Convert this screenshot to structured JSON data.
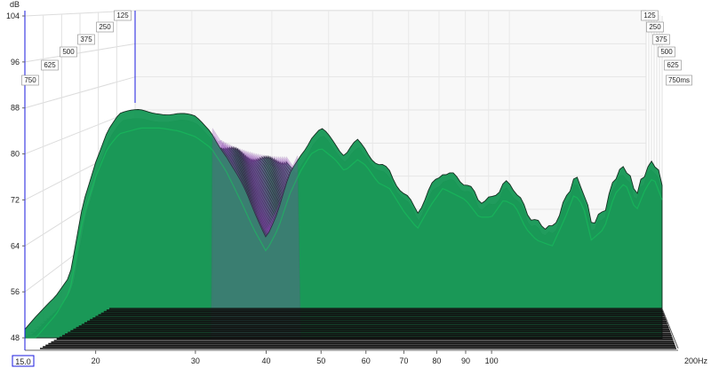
{
  "chart_data": {
    "type": "waterfall",
    "y_unit": "dB",
    "y_ticks": [
      "104",
      "96",
      "88",
      "80",
      "72",
      "64",
      "56",
      "48"
    ],
    "ylim": [
      46,
      104
    ],
    "x_ticks": [
      "20",
      "30",
      "40",
      "50",
      "60",
      "70",
      "80",
      "90",
      "100"
    ],
    "x_start_label": "15.0",
    "x_end_label": "200Hz",
    "xlim_hz": [
      15,
      200
    ],
    "x_scale": "log",
    "time_unit": "ms",
    "time_ticks_left": [
      "125",
      "250",
      "375",
      "500",
      "625",
      "750"
    ],
    "time_ticks_right": [
      "125",
      "250",
      "375",
      "500",
      "625",
      "750ms"
    ],
    "time_range_ms": [
      0,
      750
    ],
    "grid": true,
    "colors": {
      "front_fill": "#1a9a58",
      "slice_fill": "#2f8a62",
      "highlight": "#15c95c",
      "purple": "#8a3fb2",
      "floor_line": "#111111",
      "marker": "#1a1adf"
    },
    "front_slice_db": [
      {
        "hz": 15,
        "db": 49
      },
      {
        "hz": 16,
        "db": 52
      },
      {
        "hz": 17,
        "db": 55
      },
      {
        "hz": 18,
        "db": 59
      },
      {
        "hz": 19,
        "db": 72
      },
      {
        "hz": 20,
        "db": 79
      },
      {
        "hz": 21,
        "db": 84
      },
      {
        "hz": 22,
        "db": 86.5
      },
      {
        "hz": 24,
        "db": 87.5
      },
      {
        "hz": 26,
        "db": 87.5
      },
      {
        "hz": 28,
        "db": 87
      },
      {
        "hz": 30,
        "db": 86
      },
      {
        "hz": 32,
        "db": 84
      },
      {
        "hz": 34,
        "db": 80
      },
      {
        "hz": 36,
        "db": 75
      },
      {
        "hz": 38,
        "db": 70
      },
      {
        "hz": 40,
        "db": 66
      },
      {
        "hz": 42,
        "db": 70
      },
      {
        "hz": 44,
        "db": 76
      },
      {
        "hz": 46,
        "db": 80
      },
      {
        "hz": 48,
        "db": 83
      },
      {
        "hz": 50,
        "db": 84
      },
      {
        "hz": 53,
        "db": 82
      },
      {
        "hz": 55,
        "db": 80
      },
      {
        "hz": 58,
        "db": 82
      },
      {
        "hz": 60,
        "db": 81
      },
      {
        "hz": 63,
        "db": 78
      },
      {
        "hz": 66,
        "db": 77
      },
      {
        "hz": 70,
        "db": 73
      },
      {
        "hz": 74,
        "db": 70
      },
      {
        "hz": 78,
        "db": 74
      },
      {
        "hz": 82,
        "db": 77
      },
      {
        "hz": 86,
        "db": 76
      },
      {
        "hz": 90,
        "db": 75
      },
      {
        "hz": 95,
        "db": 72
      },
      {
        "hz": 100,
        "db": 72
      },
      {
        "hz": 105,
        "db": 75
      },
      {
        "hz": 110,
        "db": 74
      },
      {
        "hz": 115,
        "db": 70
      },
      {
        "hz": 120,
        "db": 68
      },
      {
        "hz": 128,
        "db": 67
      },
      {
        "hz": 135,
        "db": 72
      },
      {
        "hz": 140,
        "db": 76
      },
      {
        "hz": 145,
        "db": 74
      },
      {
        "hz": 150,
        "db": 68
      },
      {
        "hz": 158,
        "db": 70
      },
      {
        "hz": 165,
        "db": 76
      },
      {
        "hz": 172,
        "db": 78
      },
      {
        "hz": 180,
        "db": 73
      },
      {
        "hz": 187,
        "db": 77
      },
      {
        "hz": 193,
        "db": 79
      },
      {
        "hz": 200,
        "db": 75
      }
    ]
  }
}
